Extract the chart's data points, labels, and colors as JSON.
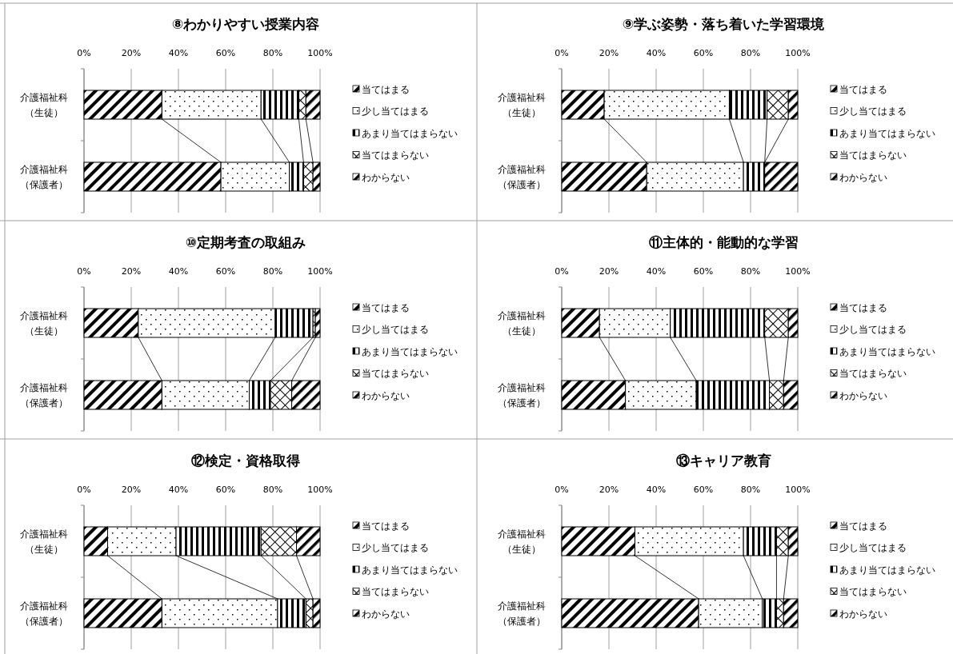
{
  "chart_data": [
    {
      "type": "bar",
      "orientation": "horizontal",
      "stacked": true,
      "title": "⑧わかりやすい授業内容",
      "categories": [
        "介護福祉科（生徒）",
        "介護福祉科（保護者）"
      ],
      "xlim": [
        0,
        100
      ],
      "xticks": [
        {
          "value": 0,
          "label": "0%"
        },
        {
          "value": 20,
          "label": "20%"
        },
        {
          "value": 40,
          "label": "40%"
        },
        {
          "value": 60,
          "label": "60%"
        },
        {
          "value": 80,
          "label": "80%"
        },
        {
          "value": 100,
          "label": "100%"
        }
      ],
      "grid": "x",
      "legend": "right",
      "series": [
        {
          "name": "当てはまる",
          "color": "#000000",
          "values": [
            33,
            58
          ]
        },
        {
          "name": "少し当てはまる",
          "color": "#000000",
          "values": [
            42,
            29
          ]
        },
        {
          "name": "あまり当てはまらない",
          "color": "#000000",
          "values": [
            16,
            6
          ]
        },
        {
          "name": "当てはまらない",
          "color": "#000000",
          "values": [
            3,
            4
          ]
        },
        {
          "name": "わからない",
          "color": "#000000",
          "values": [
            6,
            3
          ]
        }
      ]
    },
    {
      "type": "bar",
      "orientation": "horizontal",
      "stacked": true,
      "title": "⑨学ぶ姿勢・落ち着いた学習環境",
      "categories": [
        "介護福祉科（生徒）",
        "介護福祉科（保護者）"
      ],
      "xlim": [
        0,
        100
      ],
      "xticks": [
        {
          "value": 0,
          "label": "0%"
        },
        {
          "value": 20,
          "label": "20%"
        },
        {
          "value": 40,
          "label": "40%"
        },
        {
          "value": 60,
          "label": "60%"
        },
        {
          "value": 80,
          "label": "80%"
        },
        {
          "value": 100,
          "label": "100%"
        }
      ],
      "grid": "x",
      "legend": "right",
      "series": [
        {
          "name": "当てはまる",
          "color": "#000000",
          "values": [
            18,
            36
          ]
        },
        {
          "name": "少し当てはまる",
          "color": "#000000",
          "values": [
            53,
            41
          ]
        },
        {
          "name": "あまり当てはまらない",
          "color": "#000000",
          "values": [
            16,
            9
          ]
        },
        {
          "name": "当てはまらない",
          "color": "#000000",
          "values": [
            9,
            0
          ]
        },
        {
          "name": "わからない",
          "color": "#000000",
          "values": [
            4,
            14
          ]
        }
      ]
    },
    {
      "type": "bar",
      "orientation": "horizontal",
      "stacked": true,
      "title": "⑩定期考査の取組み",
      "categories": [
        "介護福祉科（生徒）",
        "介護福祉科（保護者）"
      ],
      "xlim": [
        0,
        100
      ],
      "xticks": [
        {
          "value": 0,
          "label": "0%"
        },
        {
          "value": 20,
          "label": "20%"
        },
        {
          "value": 40,
          "label": "40%"
        },
        {
          "value": 60,
          "label": "60%"
        },
        {
          "value": 80,
          "label": "80%"
        },
        {
          "value": 100,
          "label": "100%"
        }
      ],
      "grid": "x",
      "legend": "right",
      "series": [
        {
          "name": "当てはまる",
          "color": "#000000",
          "values": [
            23,
            33
          ]
        },
        {
          "name": "少し当てはまる",
          "color": "#000000",
          "values": [
            58,
            37
          ]
        },
        {
          "name": "あまり当てはまらない",
          "color": "#000000",
          "values": [
            16,
            9
          ]
        },
        {
          "name": "当てはまらない",
          "color": "#000000",
          "values": [
            1,
            9
          ]
        },
        {
          "name": "わからない",
          "color": "#000000",
          "values": [
            2,
            12
          ]
        }
      ]
    },
    {
      "type": "bar",
      "orientation": "horizontal",
      "stacked": true,
      "title": "⑪主体的・能動的な学習",
      "categories": [
        "介護福祉科（生徒）",
        "介護福祉科（保護者）"
      ],
      "xlim": [
        0,
        100
      ],
      "xticks": [
        {
          "value": 0,
          "label": "0%"
        },
        {
          "value": 20,
          "label": "20%"
        },
        {
          "value": 40,
          "label": "40%"
        },
        {
          "value": 60,
          "label": "60%"
        },
        {
          "value": 80,
          "label": "80%"
        },
        {
          "value": 100,
          "label": "100%"
        }
      ],
      "grid": "x",
      "legend": "right",
      "series": [
        {
          "name": "当てはまる",
          "color": "#000000",
          "values": [
            16,
            27
          ]
        },
        {
          "name": "少し当てはまる",
          "color": "#000000",
          "values": [
            30,
            30
          ]
        },
        {
          "name": "あまり当てはまらない",
          "color": "#000000",
          "values": [
            40,
            31
          ]
        },
        {
          "name": "当てはまらない",
          "color": "#000000",
          "values": [
            10,
            6
          ]
        },
        {
          "name": "わからない",
          "color": "#000000",
          "values": [
            4,
            6
          ]
        }
      ]
    },
    {
      "type": "bar",
      "orientation": "horizontal",
      "stacked": true,
      "title": "⑫検定・資格取得",
      "categories": [
        "介護福祉科（生徒）",
        "介護福祉科（保護者）"
      ],
      "xlim": [
        0,
        100
      ],
      "xticks": [
        {
          "value": 0,
          "label": "0%"
        },
        {
          "value": 20,
          "label": "20%"
        },
        {
          "value": 40,
          "label": "40%"
        },
        {
          "value": 60,
          "label": "60%"
        },
        {
          "value": 80,
          "label": "80%"
        },
        {
          "value": 100,
          "label": "100%"
        }
      ],
      "grid": "x",
      "legend": "right",
      "series": [
        {
          "name": "当てはまる",
          "color": "#000000",
          "values": [
            10,
            33
          ]
        },
        {
          "name": "少し当てはまる",
          "color": "#000000",
          "values": [
            29,
            49
          ]
        },
        {
          "name": "あまり当てはまらない",
          "color": "#000000",
          "values": [
            36,
            12
          ]
        },
        {
          "name": "当てはまらない",
          "color": "#000000",
          "values": [
            15,
            3
          ]
        },
        {
          "name": "わからない",
          "color": "#000000",
          "values": [
            10,
            3
          ]
        }
      ]
    },
    {
      "type": "bar",
      "orientation": "horizontal",
      "stacked": true,
      "title": "⑬キャリア教育",
      "categories": [
        "介護福祉科（生徒）",
        "介護福祉科（保護者）"
      ],
      "xlim": [
        0,
        100
      ],
      "xticks": [
        {
          "value": 0,
          "label": "0%"
        },
        {
          "value": 20,
          "label": "20%"
        },
        {
          "value": 40,
          "label": "40%"
        },
        {
          "value": 60,
          "label": "60%"
        },
        {
          "value": 80,
          "label": "80%"
        },
        {
          "value": 100,
          "label": "100%"
        }
      ],
      "grid": "x",
      "legend": "right",
      "series": [
        {
          "name": "当てはまる",
          "color": "#000000",
          "values": [
            31,
            58
          ]
        },
        {
          "name": "少し当てはまる",
          "color": "#000000",
          "values": [
            46,
            27
          ]
        },
        {
          "name": "あまり当てはまらない",
          "color": "#000000",
          "values": [
            14,
            6
          ]
        },
        {
          "name": "当てはまらない",
          "color": "#000000",
          "values": [
            5,
            3
          ]
        },
        {
          "name": "わからない",
          "color": "#000000",
          "values": [
            4,
            6
          ]
        }
      ]
    }
  ]
}
